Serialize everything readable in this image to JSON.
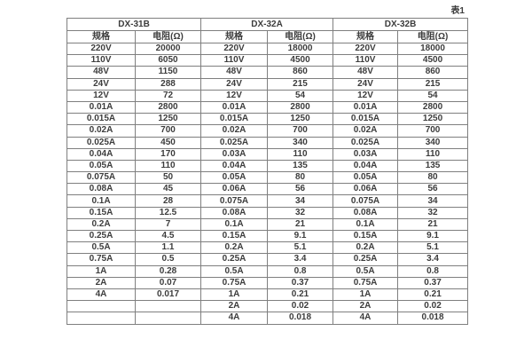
{
  "caption": "表1",
  "colors": {
    "background": "#ffffff",
    "border": "#7f7f7f",
    "text": "#3c3c3c"
  },
  "table": {
    "groups": [
      {
        "name": "DX-31B",
        "col_spec": "规格",
        "col_res": "电阻(Ω)"
      },
      {
        "name": "DX-32A",
        "col_spec": "规格",
        "col_res": "电阻(Ω)"
      },
      {
        "name": "DX-32B",
        "col_spec": "规格",
        "col_res": "电阻(Ω)"
      }
    ],
    "rows": [
      [
        "220V",
        "20000",
        "220V",
        "18000",
        "220V",
        "18000"
      ],
      [
        "110V",
        "6050",
        "110V",
        "4500",
        "110V",
        "4500"
      ],
      [
        "48V",
        "1150",
        "48V",
        "860",
        "48V",
        "860"
      ],
      [
        "24V",
        "288",
        "24V",
        "215",
        "24V",
        "215"
      ],
      [
        "12V",
        "72",
        "12V",
        "54",
        "12V",
        "54"
      ],
      [
        "0.01A",
        "2800",
        "0.01A",
        "2800",
        "0.01A",
        "2800"
      ],
      [
        "0.015A",
        "1250",
        "0.015A",
        "1250",
        "0.015A",
        "1250"
      ],
      [
        "0.02A",
        "700",
        "0.02A",
        "700",
        "0.02A",
        "700"
      ],
      [
        "0.025A",
        "450",
        "0.025A",
        "340",
        "0.025A",
        "340"
      ],
      [
        "0.04A",
        "170",
        "0.03A",
        "110",
        "0.03A",
        "110"
      ],
      [
        "0.05A",
        "110",
        "0.04A",
        "135",
        "0.04A",
        "135"
      ],
      [
        "0.075A",
        "50",
        "0.05A",
        "80",
        "0.05A",
        "80"
      ],
      [
        "0.08A",
        "45",
        "0.06A",
        "56",
        "0.06A",
        "56"
      ],
      [
        "0.1A",
        "28",
        "0.075A",
        "34",
        "0.075A",
        "34"
      ],
      [
        "0.15A",
        "12.5",
        "0.08A",
        "32",
        "0.08A",
        "32"
      ],
      [
        "0.2A",
        "7",
        "0.1A",
        "21",
        "0.1A",
        "21"
      ],
      [
        "0.25A",
        "4.5",
        "0.15A",
        "9.1",
        "0.15A",
        "9.1"
      ],
      [
        "0.5A",
        "1.1",
        "0.2A",
        "5.1",
        "0.2A",
        "5.1"
      ],
      [
        "0.75A",
        "0.5",
        "0.25A",
        "3.4",
        "0.25A",
        "3.4"
      ],
      [
        "1A",
        "0.28",
        "0.5A",
        "0.8",
        "0.5A",
        "0.8"
      ],
      [
        "2A",
        "0.07",
        "0.75A",
        "0.37",
        "0.75A",
        "0.37"
      ],
      [
        "4A",
        "0.017",
        "1A",
        "0.21",
        "1A",
        "0.21"
      ],
      [
        "",
        "",
        "2A",
        "0.02",
        "2A",
        "0.02"
      ],
      [
        "",
        "",
        "4A",
        "0.018",
        "4A",
        "0.018"
      ]
    ]
  }
}
